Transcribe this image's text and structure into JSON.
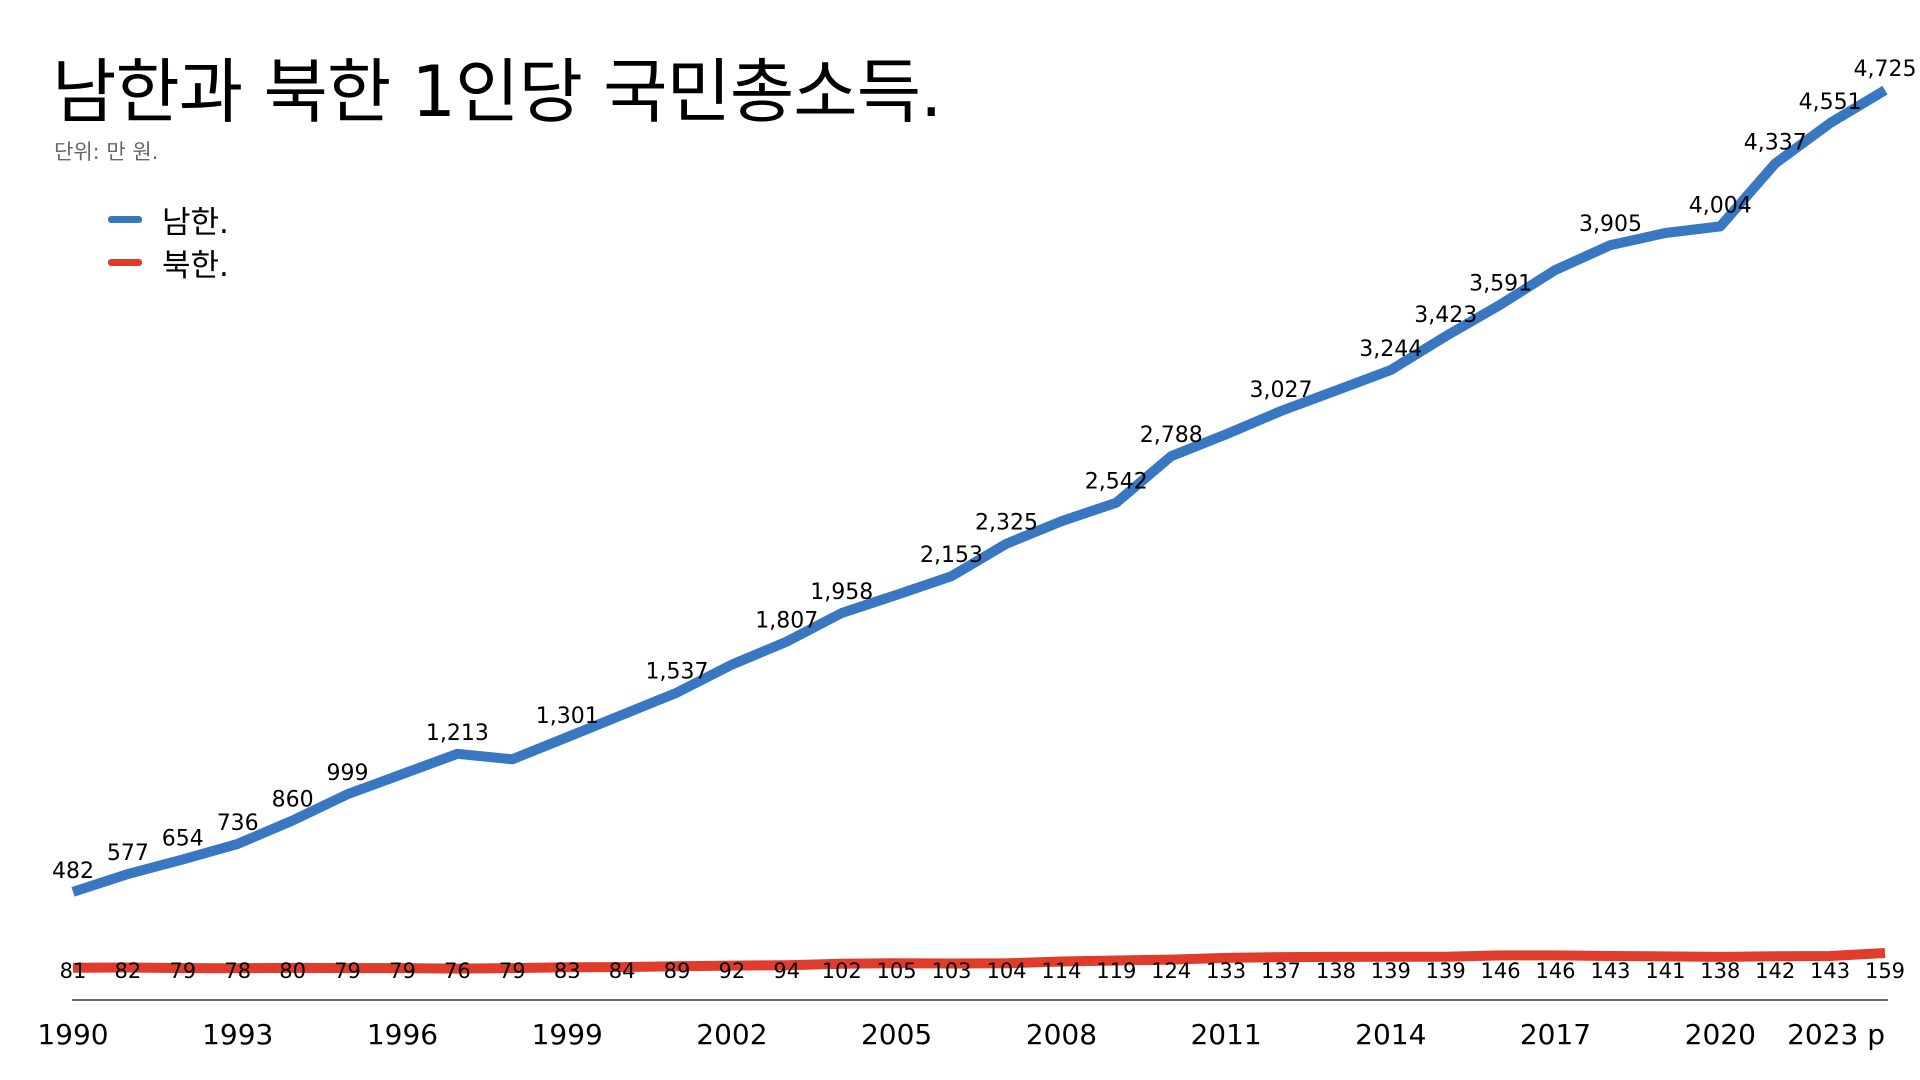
{
  "chart_data": {
    "type": "line",
    "title": "남한과 북한 1인당 국민총소득.",
    "subtitle": "단위: 만 원.",
    "x": [
      "1990",
      "1991",
      "1992",
      "1993",
      "1994",
      "1995",
      "1996",
      "1997",
      "1998",
      "1999",
      "2000",
      "2001",
      "2002",
      "2003",
      "2004",
      "2005",
      "2006",
      "2007",
      "2008",
      "2009",
      "2010",
      "2011",
      "2012",
      "2013",
      "2014",
      "2015",
      "2016",
      "2017",
      "2018",
      "2019",
      "2020",
      "2021",
      "2022",
      "2023"
    ],
    "x_tick_labels": [
      "1990",
      "1993",
      "1996",
      "1999",
      "2002",
      "2005",
      "2008",
      "2011",
      "2014",
      "2017",
      "2020",
      "2023 p"
    ],
    "series": [
      {
        "name": "남한.",
        "color": "#3877c1",
        "values": [
          482,
          577,
          654,
          736,
          860,
          999,
          1106,
          1213,
          1184,
          1301,
          1419,
          1537,
          1685,
          1807,
          1958,
          2054,
          2153,
          2325,
          2444,
          2542,
          2788,
          2904,
          3027,
          3135,
          3244,
          3423,
          3591,
          3774,
          3905,
          3969,
          4004,
          4337,
          4551,
          4725
        ],
        "labels": [
          "482",
          "577",
          "654",
          "736",
          "860",
          "999",
          "",
          "1,213",
          "",
          "1,301",
          "",
          "1,537",
          "",
          "1,807",
          "1,958",
          "",
          "2,153",
          "2,325",
          "",
          "2,542",
          "2,788",
          "",
          "3,027",
          "",
          "3,244",
          "3,423",
          "3,591",
          "",
          "3,905",
          "",
          "4,004",
          "4,337",
          "4,551",
          "4,725"
        ]
      },
      {
        "name": "북한.",
        "color": "#e03c2b",
        "values": [
          81,
          82,
          79,
          78,
          80,
          79,
          79,
          76,
          79,
          83,
          84,
          89,
          92,
          94,
          102,
          105,
          103,
          104,
          114,
          119,
          124,
          133,
          137,
          138,
          139,
          139,
          146,
          146,
          143,
          141,
          138,
          142,
          143,
          159
        ],
        "labels": [
          "81",
          "82",
          "79",
          "78",
          "80",
          "79",
          "79",
          "76",
          "79",
          "83",
          "84",
          "89",
          "92",
          "94",
          "102",
          "105",
          "103",
          "104",
          "114",
          "119",
          "124",
          "133",
          "137",
          "138",
          "139",
          "139",
          "146",
          "146",
          "143",
          "141",
          "138",
          "142",
          "143",
          "159"
        ]
      }
    ],
    "ylim": [
      0,
      4800
    ],
    "grid": false,
    "legend_position": "top-left"
  }
}
